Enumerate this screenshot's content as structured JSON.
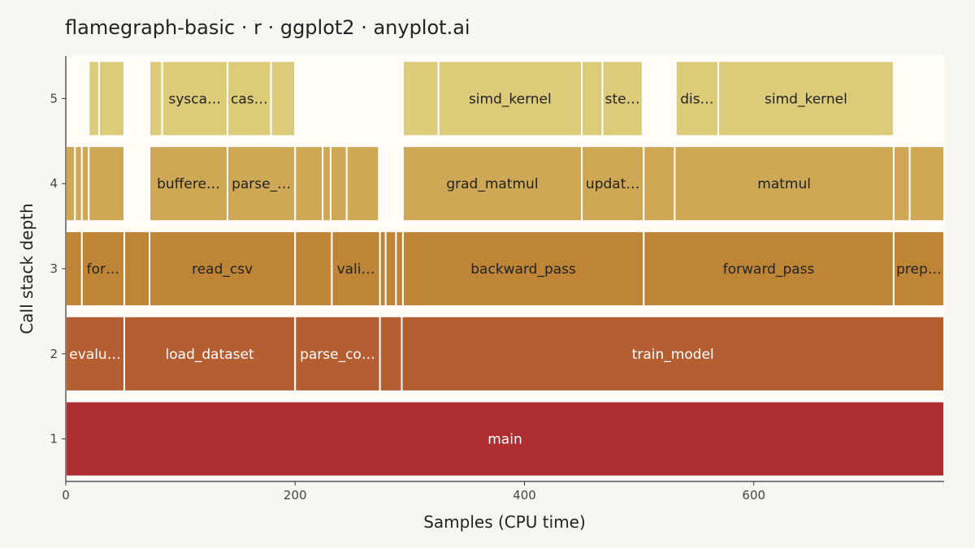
{
  "chart_data": {
    "type": "flamegraph",
    "title": "flamegraph-basic · r · ggplot2 · anyplot.ai",
    "xlabel": "Samples (CPU time)",
    "ylabel": "Call stack depth",
    "xlim": [
      0,
      766
    ],
    "ylim": [
      0.5,
      5.5
    ],
    "x_ticks": [
      0,
      200,
      400,
      600
    ],
    "y_ticks": [
      1,
      2,
      3,
      4,
      5
    ],
    "colors": {
      "depth1": "#ae2f32",
      "depth2": "#b55e31",
      "depth3": "#be8536",
      "depth4": "#cea854",
      "depth5": "#dccb78",
      "panel_background": "#fffdf6",
      "page_background": "#f8f6f0"
    },
    "frames": [
      {
        "depth": 1,
        "start": 0,
        "end": 766,
        "label": "main"
      },
      {
        "depth": 2,
        "start": 0,
        "end": 51,
        "label": "evalu…"
      },
      {
        "depth": 2,
        "start": 51,
        "end": 200,
        "label": "load_dataset"
      },
      {
        "depth": 2,
        "start": 200,
        "end": 274,
        "label": "parse_co…"
      },
      {
        "depth": 2,
        "start": 274,
        "end": 293,
        "label": ""
      },
      {
        "depth": 2,
        "start": 293,
        "end": 766,
        "label": "train_model"
      },
      {
        "depth": 3,
        "start": 0,
        "end": 14,
        "label": ""
      },
      {
        "depth": 3,
        "start": 14,
        "end": 51,
        "label": "for…"
      },
      {
        "depth": 3,
        "start": 51,
        "end": 73,
        "label": ""
      },
      {
        "depth": 3,
        "start": 73,
        "end": 200,
        "label": "read_csv"
      },
      {
        "depth": 3,
        "start": 200,
        "end": 232,
        "label": ""
      },
      {
        "depth": 3,
        "start": 232,
        "end": 274,
        "label": "vali…"
      },
      {
        "depth": 3,
        "start": 274,
        "end": 279,
        "label": ""
      },
      {
        "depth": 3,
        "start": 279,
        "end": 288,
        "label": ""
      },
      {
        "depth": 3,
        "start": 288,
        "end": 294,
        "label": ""
      },
      {
        "depth": 3,
        "start": 294,
        "end": 504,
        "label": "backward_pass"
      },
      {
        "depth": 3,
        "start": 504,
        "end": 722,
        "label": "forward_pass"
      },
      {
        "depth": 3,
        "start": 722,
        "end": 766,
        "label": "prep…"
      },
      {
        "depth": 4,
        "start": 0,
        "end": 8,
        "label": ""
      },
      {
        "depth": 4,
        "start": 8,
        "end": 14,
        "label": ""
      },
      {
        "depth": 4,
        "start": 14,
        "end": 20,
        "label": ""
      },
      {
        "depth": 4,
        "start": 20,
        "end": 51,
        "label": ""
      },
      {
        "depth": 4,
        "start": 73,
        "end": 141,
        "label": "buffere…"
      },
      {
        "depth": 4,
        "start": 141,
        "end": 200,
        "label": "parse_…"
      },
      {
        "depth": 4,
        "start": 200,
        "end": 224,
        "label": ""
      },
      {
        "depth": 4,
        "start": 224,
        "end": 231,
        "label": ""
      },
      {
        "depth": 4,
        "start": 231,
        "end": 245,
        "label": ""
      },
      {
        "depth": 4,
        "start": 245,
        "end": 273,
        "label": ""
      },
      {
        "depth": 4,
        "start": 294,
        "end": 450,
        "label": "grad_matmul"
      },
      {
        "depth": 4,
        "start": 450,
        "end": 504,
        "label": "updat…"
      },
      {
        "depth": 4,
        "start": 504,
        "end": 531,
        "label": ""
      },
      {
        "depth": 4,
        "start": 531,
        "end": 722,
        "label": "matmul"
      },
      {
        "depth": 4,
        "start": 722,
        "end": 736,
        "label": ""
      },
      {
        "depth": 4,
        "start": 736,
        "end": 766,
        "label": ""
      },
      {
        "depth": 5,
        "start": 20,
        "end": 29,
        "label": ""
      },
      {
        "depth": 5,
        "start": 29,
        "end": 51,
        "label": ""
      },
      {
        "depth": 5,
        "start": 73,
        "end": 84,
        "label": ""
      },
      {
        "depth": 5,
        "start": 84,
        "end": 141,
        "label": "sysca…"
      },
      {
        "depth": 5,
        "start": 141,
        "end": 179,
        "label": "cas…"
      },
      {
        "depth": 5,
        "start": 179,
        "end": 200,
        "label": ""
      },
      {
        "depth": 5,
        "start": 294,
        "end": 325,
        "label": ""
      },
      {
        "depth": 5,
        "start": 325,
        "end": 450,
        "label": "simd_kernel"
      },
      {
        "depth": 5,
        "start": 450,
        "end": 468,
        "label": ""
      },
      {
        "depth": 5,
        "start": 468,
        "end": 503,
        "label": "ste…"
      },
      {
        "depth": 5,
        "start": 532,
        "end": 569,
        "label": "dis…"
      },
      {
        "depth": 5,
        "start": 569,
        "end": 722,
        "label": "simd_kernel"
      }
    ]
  }
}
